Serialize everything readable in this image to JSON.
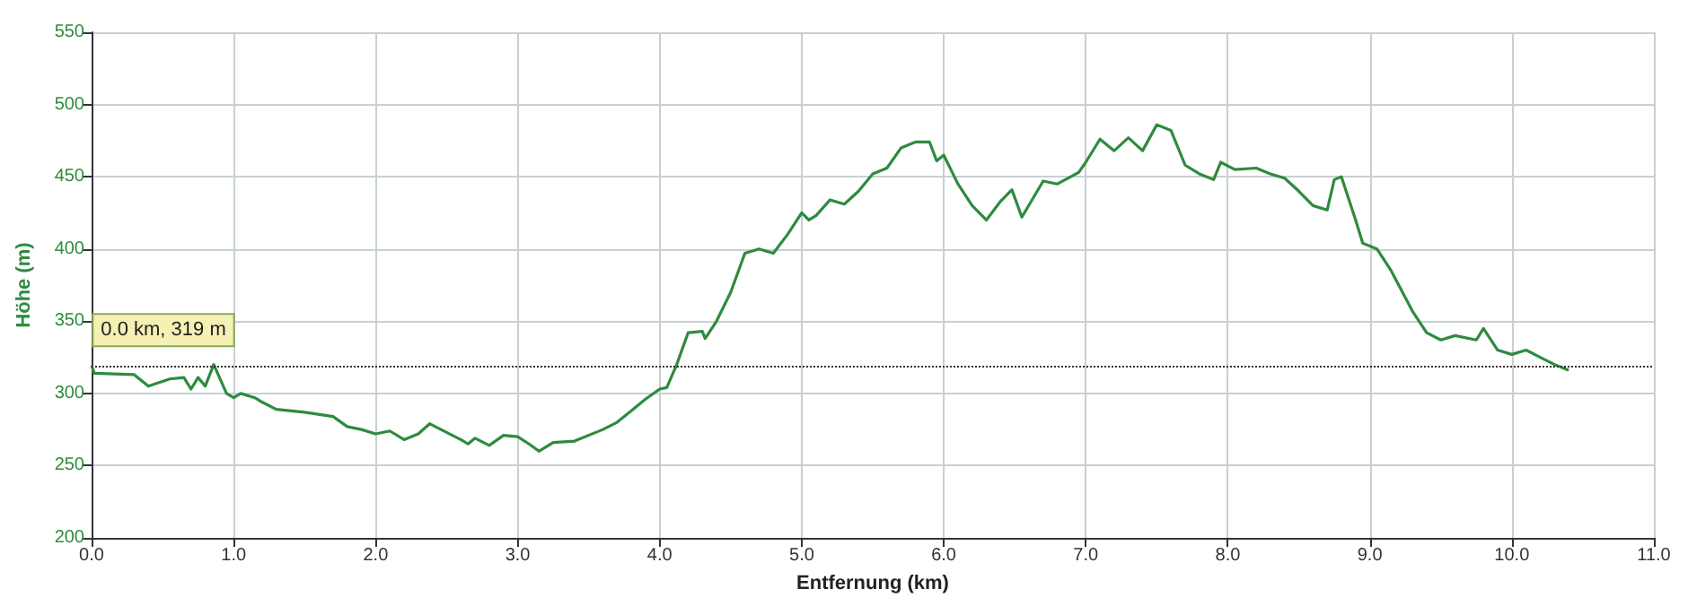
{
  "chart_data": {
    "type": "line",
    "xlabel": "Entfernung (km)",
    "ylabel": "Höhe (m)",
    "x": [
      0,
      0.02,
      0.3,
      0.4,
      0.55,
      0.65,
      0.7,
      0.75,
      0.8,
      0.86,
      0.95,
      1.0,
      1.05,
      1.15,
      1.2,
      1.3,
      1.5,
      1.7,
      1.8,
      1.9,
      2.0,
      2.1,
      2.2,
      2.3,
      2.38,
      2.5,
      2.6,
      2.65,
      2.7,
      2.8,
      2.9,
      3.0,
      3.08,
      3.15,
      3.25,
      3.4,
      3.6,
      3.7,
      3.8,
      3.9,
      4.0,
      4.05,
      4.12,
      4.2,
      4.3,
      4.32,
      4.4,
      4.5,
      4.6,
      4.7,
      4.8,
      4.9,
      5.0,
      5.05,
      5.1,
      5.2,
      5.3,
      5.4,
      5.5,
      5.6,
      5.7,
      5.8,
      5.9,
      5.95,
      6.0,
      6.05,
      6.1,
      6.2,
      6.3,
      6.4,
      6.48,
      6.55,
      6.7,
      6.8,
      6.95,
      7.0,
      7.1,
      7.2,
      7.3,
      7.4,
      7.5,
      7.6,
      7.7,
      7.8,
      7.9,
      7.95,
      8.05,
      8.2,
      8.3,
      8.4,
      8.5,
      8.6,
      8.7,
      8.75,
      8.8,
      8.9,
      8.95,
      9.05,
      9.15,
      9.3,
      9.4,
      9.5,
      9.6,
      9.75,
      9.8,
      9.9,
      10.0,
      10.1,
      10.2,
      10.3,
      10.4
    ],
    "series": [
      {
        "color": "#2e8b3e",
        "values": [
          319,
          314,
          313,
          305,
          310,
          311,
          303,
          311,
          305,
          320,
          300,
          297,
          300,
          297,
          294,
          289,
          287,
          284,
          277,
          275,
          272,
          274,
          268,
          272,
          279,
          273,
          268,
          265,
          269,
          264,
          271,
          270,
          265,
          260,
          266,
          267,
          275,
          280,
          288,
          296,
          303,
          304,
          320,
          342,
          343,
          338,
          350,
          370,
          397,
          400,
          397,
          410,
          425,
          420,
          423,
          434,
          431,
          440,
          452,
          456,
          470,
          474,
          474,
          461,
          465,
          455,
          445,
          430,
          420,
          433,
          441,
          422,
          447,
          445,
          453,
          460,
          476,
          468,
          477,
          468,
          486,
          482,
          458,
          452,
          448,
          460,
          455,
          456,
          452,
          449,
          440,
          430,
          427,
          448,
          450,
          420,
          404,
          400,
          385,
          357,
          342,
          337,
          340,
          337,
          345,
          330,
          327,
          330,
          325,
          320,
          316
        ]
      }
    ],
    "xlim": [
      0,
      11
    ],
    "xticks": [
      {
        "value": 0,
        "label": "0.0"
      },
      {
        "value": 1,
        "label": "1.0"
      },
      {
        "value": 2,
        "label": "2.0"
      },
      {
        "value": 3,
        "label": "3.0"
      },
      {
        "value": 4,
        "label": "4.0"
      },
      {
        "value": 5,
        "label": "5.0"
      },
      {
        "value": 6,
        "label": "6.0"
      },
      {
        "value": 7,
        "label": "7.0"
      },
      {
        "value": 8,
        "label": "8.0"
      },
      {
        "value": 9,
        "label": "9.0"
      },
      {
        "value": 10,
        "label": "10.0"
      },
      {
        "value": 11,
        "label": "11.0"
      }
    ],
    "ylim": [
      200,
      550
    ],
    "yticks": [
      200,
      250,
      300,
      350,
      400,
      450,
      500,
      550
    ],
    "grid": true,
    "marker": "none",
    "line_style": "solid",
    "ref_lines": [
      {
        "axis": "y",
        "value": 319,
        "color": "#333333",
        "line_style": "dotted"
      }
    ],
    "annotations": [
      {
        "text": "0.0 km, 319 m",
        "x": 0,
        "y": 319
      }
    ]
  }
}
